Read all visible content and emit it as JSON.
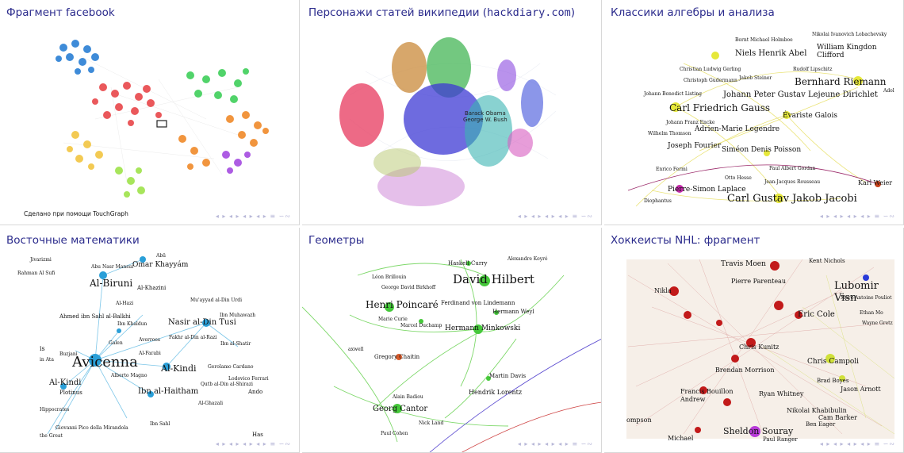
{
  "slides": [
    {
      "title": "Фрагмент facebook",
      "credit": "Сделано при помощи TouchGraph"
    },
    {
      "title_prefix": "Персонажи статей википедии (",
      "title_mono": "hackdiary.com",
      "title_suffix": ")",
      "labels": [
        "Barack Obama",
        "George W. Bush"
      ]
    },
    {
      "title": "Классики алгебры и анализа",
      "labels": [
        {
          "text": "Bernt Michael Holmboe"
        },
        {
          "text": "Nikolai Ivanovich Lobachevsky"
        },
        {
          "text": "Niels Henrik Abel"
        },
        {
          "text": "William Kingdon Clifford"
        },
        {
          "text": "Christian Ludwig Gerling"
        },
        {
          "text": "Rudolf Lipschitz"
        },
        {
          "text": "Christoph Gudermann"
        },
        {
          "text": "Jakob Steiner"
        },
        {
          "text": "Bernhard Riemann"
        },
        {
          "text": "Johann Benedict Listing"
        },
        {
          "text": "Johann Peter Gustav Lejeune Dirichlet"
        },
        {
          "text": "Adol"
        },
        {
          "text": "Carl Friedrich Gauss"
        },
        {
          "text": "Évariste Galois"
        },
        {
          "text": "Johann Franz Encke"
        },
        {
          "text": "Adrien-Marie Legendre"
        },
        {
          "text": "Wilhelm Thomson"
        },
        {
          "text": "Joseph Fourier"
        },
        {
          "text": "Siméon Denis Poisson"
        },
        {
          "text": "Enrico Fermi"
        },
        {
          "text": "Paul Albert Gordan"
        },
        {
          "text": "Otto Hesse"
        },
        {
          "text": "Jean-Jacques Rousseau"
        },
        {
          "text": "Karl Weier"
        },
        {
          "text": "Pierre-Simon Laplace"
        },
        {
          "text": "Carl Gustav Jakob Jacobi"
        },
        {
          "text": "Diophantus"
        }
      ]
    },
    {
      "title": "Восточные математики",
      "labels": [
        {
          "text": "Abū"
        },
        {
          "text": "Jivarizmi"
        },
        {
          "text": "Abu Nasr Mansur"
        },
        {
          "text": "Omar Khayyám"
        },
        {
          "text": "Rahman Al Sufi"
        },
        {
          "text": "Al-Biruni"
        },
        {
          "text": "Al-Khazini"
        },
        {
          "text": "Al-Hazi"
        },
        {
          "text": "Mu'ayyad al-Din Urdi"
        },
        {
          "text": "Ahmed ibn Sahl al-Balkhi"
        },
        {
          "text": "Ibn Muhawazh"
        },
        {
          "text": "Ibn Khaldun"
        },
        {
          "text": "Nasir al-Din Tusi"
        },
        {
          "text": "Averroes"
        },
        {
          "text": "Fakhr al-Din al-Razi"
        },
        {
          "text": "Galen"
        },
        {
          "text": "Ibn al-Shatir"
        },
        {
          "text": "Al-Farabi"
        },
        {
          "text": "is"
        },
        {
          "text": "Buzjani"
        },
        {
          "text": "in Ata"
        },
        {
          "text": "Avicenna"
        },
        {
          "text": "Al-Kindi"
        },
        {
          "text": "Gerolamo Cardano"
        },
        {
          "text": "Alberto Magno"
        },
        {
          "text": "Lodovico Ferrari"
        },
        {
          "text": "Al-Kindi"
        },
        {
          "text": "Qutb al-Din al-Shirazi"
        },
        {
          "text": "Plotinus"
        },
        {
          "text": "Ibn al-Haitham"
        },
        {
          "text": "Ando"
        },
        {
          "text": "Al-Ghazali"
        },
        {
          "text": "Hippocrates"
        },
        {
          "text": "Ibn Sahl"
        },
        {
          "text": "Giovanni Pico della Mirandola"
        },
        {
          "text": "the Great"
        },
        {
          "text": "Has"
        }
      ]
    },
    {
      "title": "Геометры",
      "labels": [
        {
          "text": "Haskell Curry"
        },
        {
          "text": "Alexandre Koyré"
        },
        {
          "text": "Léon Brillouin"
        },
        {
          "text": "David Hilbert"
        },
        {
          "text": "George David Birkhoff"
        },
        {
          "text": "Henri Poincaré"
        },
        {
          "text": "Ferdinand von Lindemann"
        },
        {
          "text": "Hermann Weyl"
        },
        {
          "text": "Marie Curie"
        },
        {
          "text": "Marcel Duchamp"
        },
        {
          "text": "Hermann Minkowski"
        },
        {
          "text": "axwell"
        },
        {
          "text": "Gregory Chaitin"
        },
        {
          "text": "Martin Davis"
        },
        {
          "text": "Hendrik Lorentz"
        },
        {
          "text": "Alain Badiou"
        },
        {
          "text": "Georg Cantor"
        },
        {
          "text": "Nick Land"
        },
        {
          "text": "Paul Cohen"
        }
      ]
    },
    {
      "title": "Хоккеисты NHL: фрагмент",
      "labels": [
        {
          "text": "Travis Moen"
        },
        {
          "text": "Kent Nichols"
        },
        {
          "text": "Pierre Parenteau"
        },
        {
          "text": "Lubomir Visn"
        },
        {
          "text": "Nikla"
        },
        {
          "text": "Marc-Antoine Pouliot"
        },
        {
          "text": "Eric Cole"
        },
        {
          "text": "Ethan Mo"
        },
        {
          "text": "Wayne Gretz"
        },
        {
          "text": "Chris Kunitz"
        },
        {
          "text": "Brendan Morrison"
        },
        {
          "text": "Chris Campoli"
        },
        {
          "text": "Brad Boyes"
        },
        {
          "text": "Jason Arnott"
        },
        {
          "text": "Francis Bouillon"
        },
        {
          "text": "Ryan Whitney"
        },
        {
          "text": "Andrew"
        },
        {
          "text": "Nikolai Khabibulin"
        },
        {
          "text": "Cam Barker"
        },
        {
          "text": "ompson"
        },
        {
          "text": "Ben Eager"
        },
        {
          "text": "Sheldon Souray"
        },
        {
          "text": "Michael"
        },
        {
          "text": "Paul Ranger"
        }
      ]
    }
  ],
  "nav": "◂ ▸ ◂ ▸ ◂ ▸ ◂ ▸ ≡ ∽∾",
  "colors": {
    "title": "#2b2b8c",
    "border": "#d8d8d8"
  }
}
